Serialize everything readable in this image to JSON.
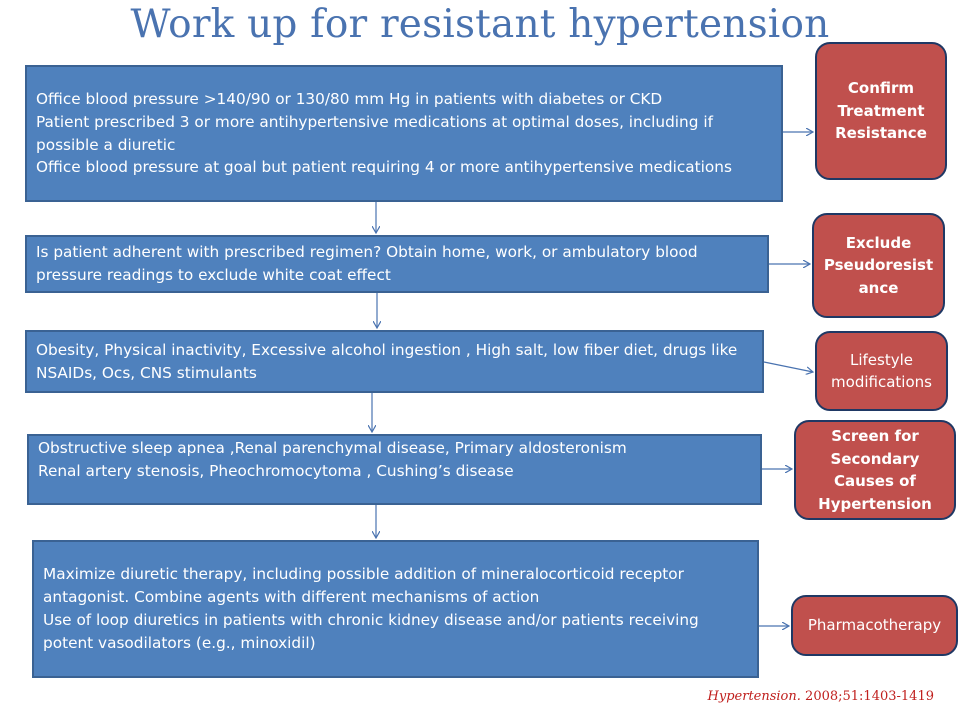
{
  "title": "Work up for resistant hypertension",
  "steps": [
    {
      "lines": [
        "Office blood pressure >140/90 or 130/80 mm Hg in patients with diabetes or CKD",
        "Patient prescribed 3 or more antihypertensive medications at optimal doses, including if possible a diuretic",
        "Office blood pressure at goal but patient requiring 4 or more antihypertensive medications"
      ],
      "outcome": "Confirm Treatment Resistance"
    },
    {
      "lines": [
        "Is patient adherent with prescribed regimen? Obtain home, work, or ambulatory blood pressure readings to exclude white coat effect"
      ],
      "outcome": "Exclude Pseudoresist ance"
    },
    {
      "lines": [
        "Obesity, Physical inactivity, Excessive alcohol ingestion , High salt, low fiber diet, drugs like NSAIDs, Ocs, CNS stimulants"
      ],
      "outcome": "Lifestyle modifications"
    },
    {
      "lines": [
        "Obstructive sleep apnea ,Renal parenchymal disease, Primary aldosteronism",
        "Renal artery stenosis, Pheochromocytoma , Cushing’s disease"
      ],
      "outcome": "Screen for Secondary Causes of Hypertension"
    },
    {
      "lines": [
        "Maximize diuretic therapy, including possible addition of mineralocorticoid receptor antagonist. Combine agents with different mechanisms of action",
        "Use of loop diuretics in patients with chronic kidney disease and/or patients receiving potent vasodilators (e.g., minoxidil)"
      ],
      "outcome": "Pharmacotherapy"
    }
  ],
  "citation": {
    "journal": "Hypertension.",
    "reference": "2008;51:1403-1419"
  },
  "colors": {
    "title": "#4a73b0",
    "step_fill": "#4f81bd",
    "outcome_fill": "#c0504d",
    "outcome_border": "#1f3864",
    "connector": "#4a73b0",
    "citation": "#c0201e"
  }
}
